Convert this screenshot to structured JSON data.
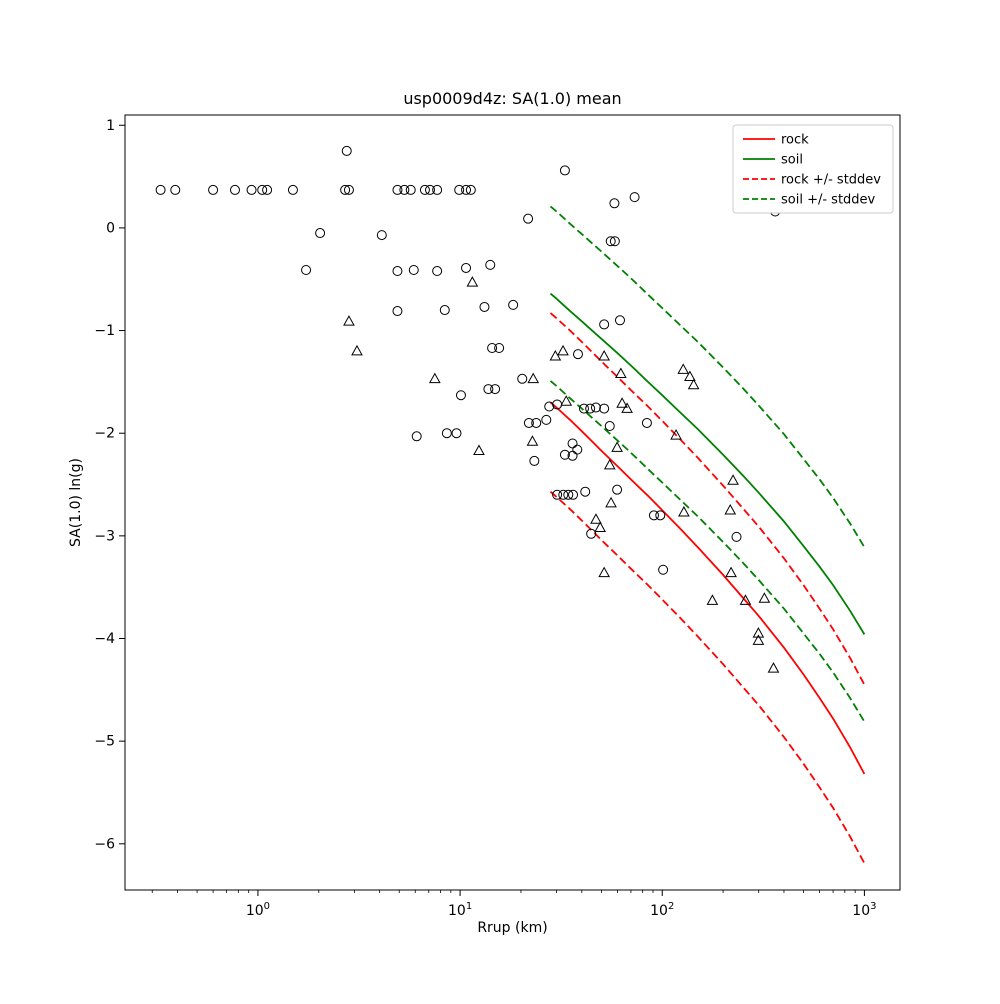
{
  "title": "usp0009d4z: SA(1.0) mean",
  "axes": {
    "xlabel": "Rrup (km)",
    "ylabel": "SA(1.0) ln(g)",
    "x_tick_base": "10",
    "x_ticks": {
      "values": [
        1,
        10,
        100,
        1000
      ],
      "exponents": [
        "0",
        "1",
        "2",
        "3"
      ]
    },
    "y_ticks": {
      "values": [
        1,
        0,
        -1,
        -2,
        -3,
        -4,
        -5,
        -6
      ],
      "labels": [
        "1",
        "0",
        "−1",
        "−2",
        "−3",
        "−4",
        "−5",
        "−6"
      ]
    }
  },
  "legend": {
    "entries": [
      {
        "label": "rock",
        "color": "#ff0000",
        "dash": false
      },
      {
        "label": "soil",
        "color": "#008000",
        "dash": false
      },
      {
        "label": "rock +/- stddev",
        "color": "#ff0000",
        "dash": true
      },
      {
        "label": "soil +/- stddev",
        "color": "#008000",
        "dash": true
      }
    ]
  },
  "colors": {
    "rock": "#ff0000",
    "soil": "#008000",
    "marker": "#000000",
    "frame": "#000000"
  },
  "chart_data": {
    "type": "scatter",
    "x_scale": "log",
    "xlim": [
      0.22,
      1500
    ],
    "ylim": [
      -6.45,
      1.1
    ],
    "grid": false,
    "legend_position": "upper right",
    "series": [
      {
        "name": "rock",
        "kind": "line",
        "style": "solid",
        "color": "#ff0000",
        "points": [
          [
            28,
            -1.7
          ],
          [
            30,
            -1.75
          ],
          [
            35,
            -1.87
          ],
          [
            40,
            -1.98
          ],
          [
            45,
            -2.08
          ],
          [
            50,
            -2.17
          ],
          [
            60,
            -2.32
          ],
          [
            70,
            -2.45
          ],
          [
            85,
            -2.61
          ],
          [
            100,
            -2.75
          ],
          [
            120,
            -2.91
          ],
          [
            150,
            -3.11
          ],
          [
            200,
            -3.38
          ],
          [
            250,
            -3.6
          ],
          [
            300,
            -3.78
          ],
          [
            400,
            -4.09
          ],
          [
            500,
            -4.35
          ],
          [
            600,
            -4.58
          ],
          [
            700,
            -4.78
          ],
          [
            850,
            -5.06
          ],
          [
            1000,
            -5.32
          ]
        ]
      },
      {
        "name": "soil",
        "kind": "line",
        "style": "solid",
        "color": "#008000",
        "points": [
          [
            28,
            -0.64
          ],
          [
            30,
            -0.69
          ],
          [
            35,
            -0.81
          ],
          [
            40,
            -0.91
          ],
          [
            45,
            -1.0
          ],
          [
            50,
            -1.08
          ],
          [
            60,
            -1.22
          ],
          [
            70,
            -1.34
          ],
          [
            85,
            -1.5
          ],
          [
            100,
            -1.63
          ],
          [
            120,
            -1.78
          ],
          [
            150,
            -1.96
          ],
          [
            200,
            -2.21
          ],
          [
            250,
            -2.41
          ],
          [
            300,
            -2.58
          ],
          [
            400,
            -2.86
          ],
          [
            500,
            -3.1
          ],
          [
            600,
            -3.3
          ],
          [
            700,
            -3.48
          ],
          [
            850,
            -3.73
          ],
          [
            1000,
            -3.96
          ]
        ]
      },
      {
        "name": "rock +stddev",
        "kind": "line",
        "style": "dashed",
        "color": "#ff0000",
        "points": [
          [
            28,
            -0.83
          ],
          [
            30,
            -0.88
          ],
          [
            35,
            -1.0
          ],
          [
            40,
            -1.11
          ],
          [
            45,
            -1.21
          ],
          [
            50,
            -1.3
          ],
          [
            60,
            -1.45
          ],
          [
            70,
            -1.58
          ],
          [
            85,
            -1.74
          ],
          [
            100,
            -1.88
          ],
          [
            120,
            -2.04
          ],
          [
            150,
            -2.24
          ],
          [
            200,
            -2.51
          ],
          [
            250,
            -2.73
          ],
          [
            300,
            -2.91
          ],
          [
            400,
            -3.22
          ],
          [
            500,
            -3.48
          ],
          [
            600,
            -3.71
          ],
          [
            700,
            -3.91
          ],
          [
            850,
            -4.19
          ],
          [
            1000,
            -4.45
          ]
        ]
      },
      {
        "name": "rock -stddev",
        "kind": "line",
        "style": "dashed",
        "color": "#ff0000",
        "points": [
          [
            28,
            -2.57
          ],
          [
            30,
            -2.62
          ],
          [
            35,
            -2.74
          ],
          [
            40,
            -2.85
          ],
          [
            45,
            -2.95
          ],
          [
            50,
            -3.04
          ],
          [
            60,
            -3.19
          ],
          [
            70,
            -3.32
          ],
          [
            85,
            -3.48
          ],
          [
            100,
            -3.62
          ],
          [
            120,
            -3.78
          ],
          [
            150,
            -3.98
          ],
          [
            200,
            -4.25
          ],
          [
            250,
            -4.47
          ],
          [
            300,
            -4.65
          ],
          [
            400,
            -4.96
          ],
          [
            500,
            -5.22
          ],
          [
            600,
            -5.45
          ],
          [
            700,
            -5.65
          ],
          [
            850,
            -5.93
          ],
          [
            1000,
            -6.19
          ]
        ]
      },
      {
        "name": "soil +stddev",
        "kind": "line",
        "style": "dashed",
        "color": "#008000",
        "points": [
          [
            28,
            0.21
          ],
          [
            30,
            0.16
          ],
          [
            35,
            0.04
          ],
          [
            40,
            -0.06
          ],
          [
            45,
            -0.15
          ],
          [
            50,
            -0.23
          ],
          [
            60,
            -0.37
          ],
          [
            70,
            -0.49
          ],
          [
            85,
            -0.65
          ],
          [
            100,
            -0.78
          ],
          [
            120,
            -0.93
          ],
          [
            150,
            -1.11
          ],
          [
            200,
            -1.36
          ],
          [
            250,
            -1.56
          ],
          [
            300,
            -1.73
          ],
          [
            400,
            -2.01
          ],
          [
            500,
            -2.25
          ],
          [
            600,
            -2.45
          ],
          [
            700,
            -2.63
          ],
          [
            850,
            -2.88
          ],
          [
            1000,
            -3.11
          ]
        ]
      },
      {
        "name": "soil -stddev",
        "kind": "line",
        "style": "dashed",
        "color": "#008000",
        "points": [
          [
            28,
            -1.49
          ],
          [
            30,
            -1.54
          ],
          [
            35,
            -1.66
          ],
          [
            40,
            -1.76
          ],
          [
            45,
            -1.85
          ],
          [
            50,
            -1.93
          ],
          [
            60,
            -2.07
          ],
          [
            70,
            -2.19
          ],
          [
            85,
            -2.35
          ],
          [
            100,
            -2.48
          ],
          [
            120,
            -2.63
          ],
          [
            150,
            -2.81
          ],
          [
            200,
            -3.06
          ],
          [
            250,
            -3.26
          ],
          [
            300,
            -3.43
          ],
          [
            400,
            -3.71
          ],
          [
            500,
            -3.95
          ],
          [
            600,
            -4.15
          ],
          [
            700,
            -4.33
          ],
          [
            850,
            -4.58
          ],
          [
            1000,
            -4.81
          ]
        ]
      },
      {
        "name": "observations (circles)",
        "kind": "scatter",
        "marker": "circle",
        "color": "#000000",
        "points": [
          [
            0.33,
            0.37
          ],
          [
            0.39,
            0.37
          ],
          [
            0.6,
            0.37
          ],
          [
            0.77,
            0.37
          ],
          [
            0.93,
            0.37
          ],
          [
            1.05,
            0.37
          ],
          [
            1.11,
            0.37
          ],
          [
            1.49,
            0.37
          ],
          [
            2.7,
            0.37
          ],
          [
            2.82,
            0.37
          ],
          [
            4.9,
            0.37
          ],
          [
            5.3,
            0.37
          ],
          [
            5.7,
            0.37
          ],
          [
            6.7,
            0.37
          ],
          [
            7.1,
            0.37
          ],
          [
            7.7,
            0.37
          ],
          [
            9.9,
            0.37
          ],
          [
            10.7,
            0.37
          ],
          [
            11.3,
            0.37
          ],
          [
            2.75,
            0.75
          ],
          [
            33,
            0.56
          ],
          [
            58,
            0.24
          ],
          [
            73,
            0.3
          ],
          [
            21.7,
            0.09
          ],
          [
            362,
            0.16
          ],
          [
            2.03,
            -0.05
          ],
          [
            4.1,
            -0.07
          ],
          [
            55.6,
            -0.13
          ],
          [
            58.3,
            -0.13
          ],
          [
            1.73,
            -0.41
          ],
          [
            4.9,
            -0.42
          ],
          [
            5.9,
            -0.41
          ],
          [
            7.7,
            -0.42
          ],
          [
            10.7,
            -0.39
          ],
          [
            14.1,
            -0.36
          ],
          [
            4.9,
            -0.81
          ],
          [
            8.4,
            -0.8
          ],
          [
            13.2,
            -0.77
          ],
          [
            18.3,
            -0.75
          ],
          [
            51.6,
            -0.94
          ],
          [
            61.8,
            -0.9
          ],
          [
            14.4,
            -1.17
          ],
          [
            15.6,
            -1.17
          ],
          [
            38.3,
            -1.23
          ],
          [
            20.3,
            -1.47
          ],
          [
            10.1,
            -1.63
          ],
          [
            13.8,
            -1.57
          ],
          [
            14.9,
            -1.57
          ],
          [
            27.6,
            -1.74
          ],
          [
            30.2,
            -1.72
          ],
          [
            41,
            -1.76
          ],
          [
            44,
            -1.76
          ],
          [
            47,
            -1.75
          ],
          [
            51.6,
            -1.76
          ],
          [
            21.9,
            -1.9
          ],
          [
            23.8,
            -1.9
          ],
          [
            26.7,
            -1.87
          ],
          [
            55,
            -1.93
          ],
          [
            84,
            -1.9
          ],
          [
            6.1,
            -2.03
          ],
          [
            8.6,
            -2.0
          ],
          [
            9.6,
            -2.0
          ],
          [
            36,
            -2.1
          ],
          [
            38,
            -2.16
          ],
          [
            23.3,
            -2.27
          ],
          [
            33,
            -2.21
          ],
          [
            36,
            -2.22
          ],
          [
            30.2,
            -2.6
          ],
          [
            32.4,
            -2.6
          ],
          [
            34.3,
            -2.6
          ],
          [
            36.2,
            -2.6
          ],
          [
            41.6,
            -2.57
          ],
          [
            59.8,
            -2.55
          ],
          [
            91,
            -2.8
          ],
          [
            97.8,
            -2.8
          ],
          [
            44.5,
            -2.98
          ],
          [
            233,
            -3.01
          ],
          [
            101,
            -3.33
          ]
        ]
      },
      {
        "name": "observations (triangles)",
        "kind": "scatter",
        "marker": "triangle",
        "color": "#000000",
        "points": [
          [
            11.5,
            -0.53
          ],
          [
            2.82,
            -0.91
          ],
          [
            3.09,
            -1.2
          ],
          [
            29.6,
            -1.25
          ],
          [
            32.3,
            -1.2
          ],
          [
            51.6,
            -1.25
          ],
          [
            7.5,
            -1.47
          ],
          [
            23.0,
            -1.47
          ],
          [
            62.4,
            -1.42
          ],
          [
            127,
            -1.38
          ],
          [
            137,
            -1.45
          ],
          [
            143,
            -1.53
          ],
          [
            33.5,
            -1.69
          ],
          [
            63.3,
            -1.71
          ],
          [
            67.0,
            -1.76
          ],
          [
            12.4,
            -2.17
          ],
          [
            22.8,
            -2.08
          ],
          [
            59.8,
            -2.14
          ],
          [
            117,
            -2.02
          ],
          [
            55,
            -2.31
          ],
          [
            224,
            -2.46
          ],
          [
            55.8,
            -2.68
          ],
          [
            128,
            -2.77
          ],
          [
            217,
            -2.75
          ],
          [
            47,
            -2.84
          ],
          [
            49.3,
            -2.92
          ],
          [
            51.6,
            -3.36
          ],
          [
            219,
            -3.36
          ],
          [
            177,
            -3.63
          ],
          [
            258,
            -3.63
          ],
          [
            320,
            -3.61
          ],
          [
            299,
            -3.95
          ],
          [
            299,
            -4.02
          ],
          [
            355,
            -4.29
          ]
        ]
      }
    ]
  }
}
